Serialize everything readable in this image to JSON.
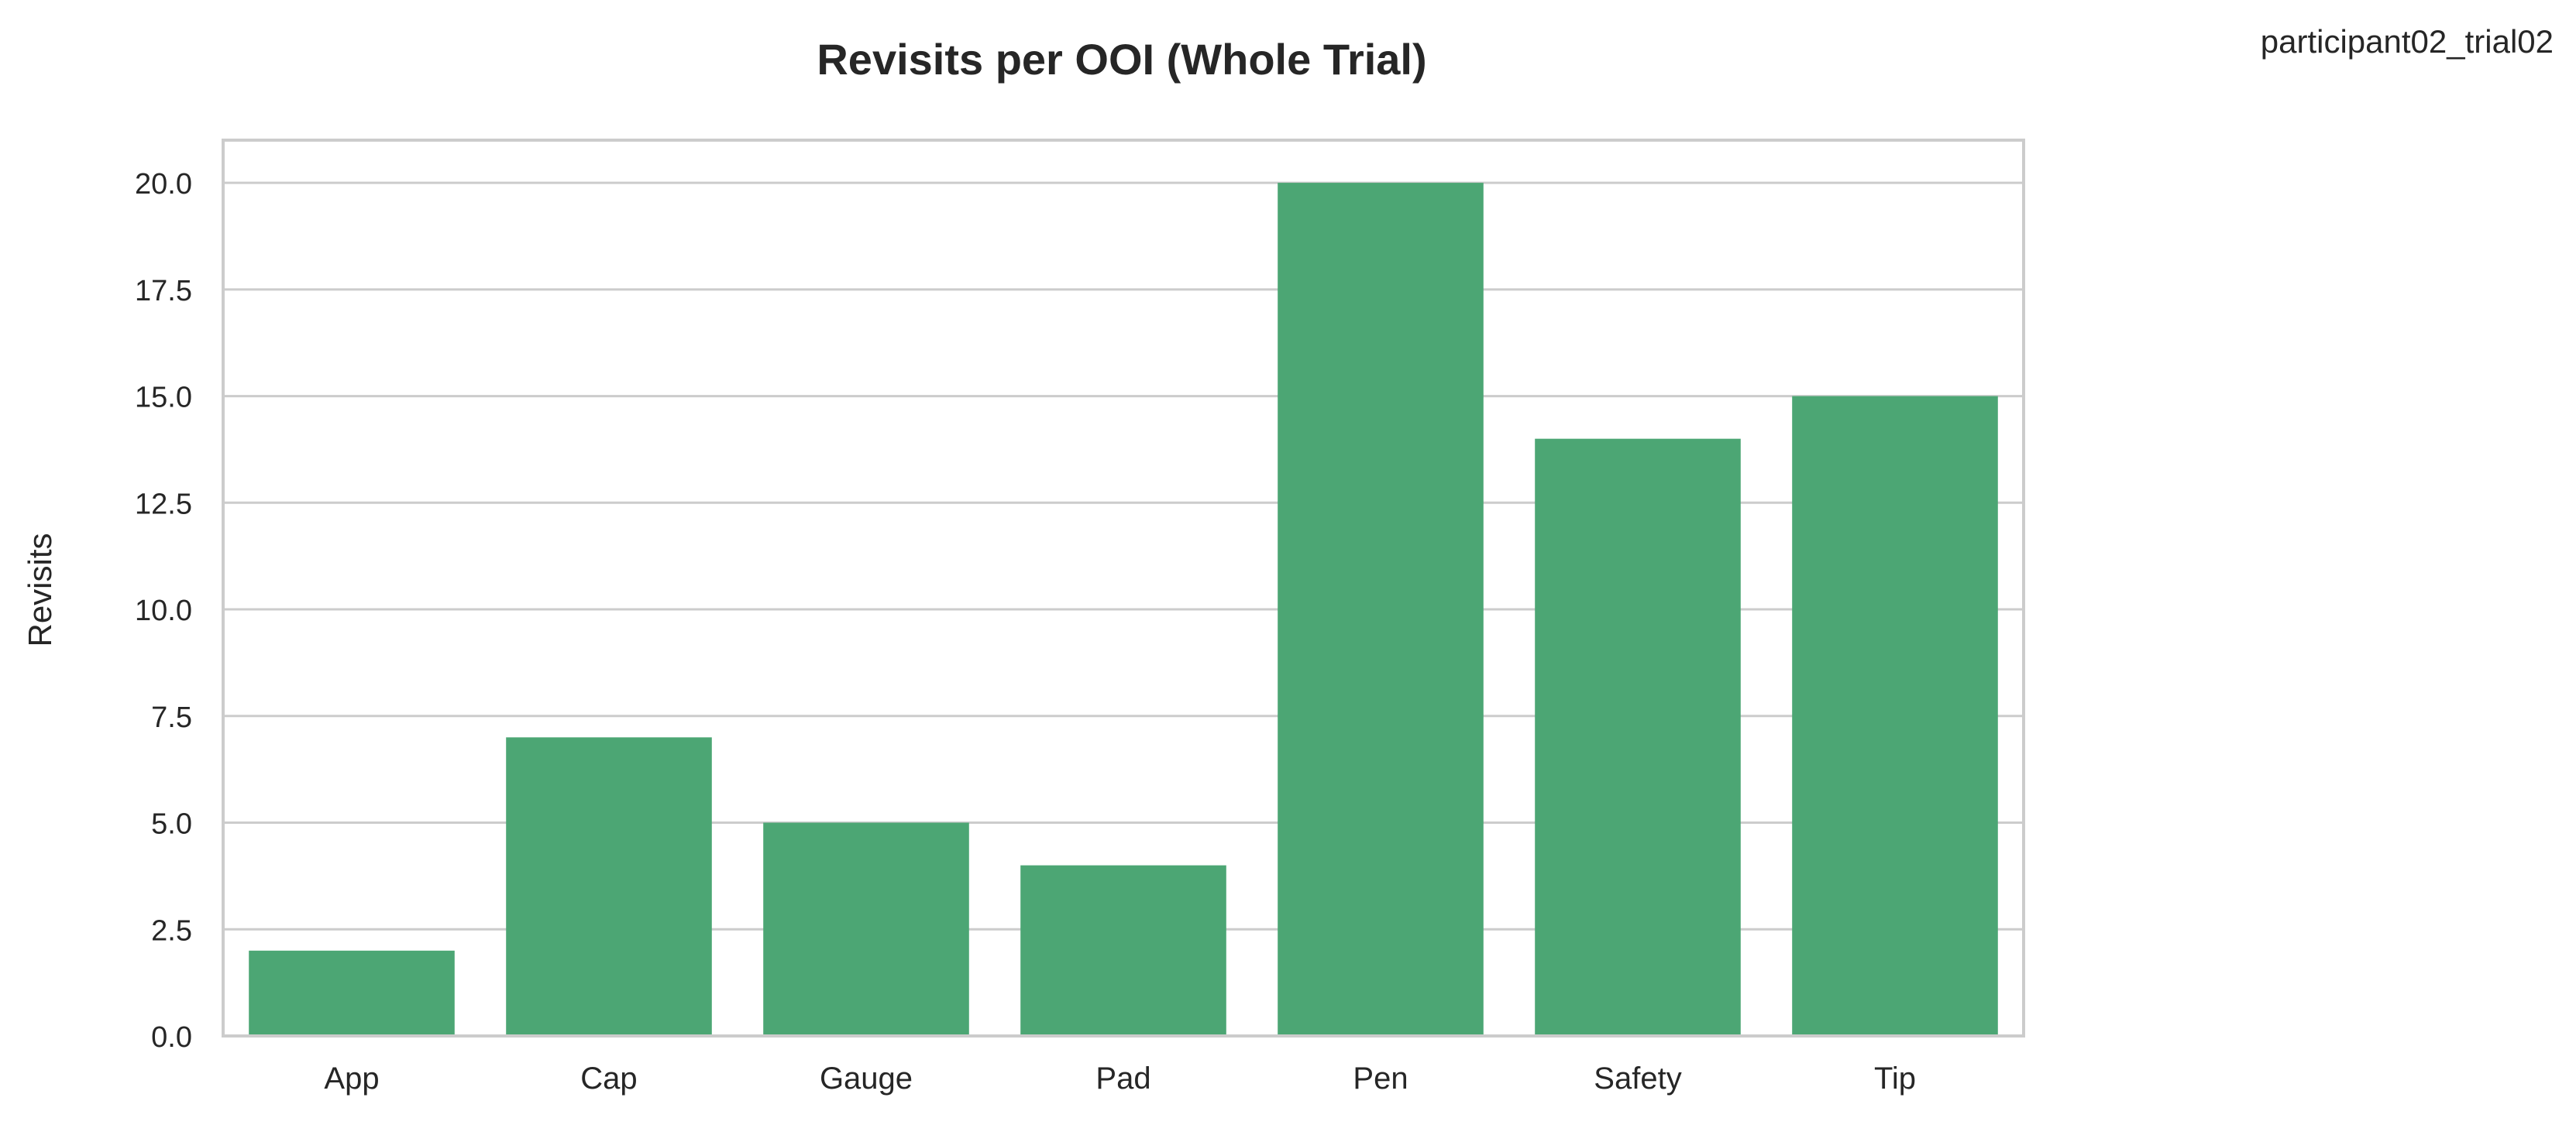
{
  "header": {
    "run_label": "participant02_trial02"
  },
  "chart_data": {
    "type": "bar",
    "title": "Revisits per OOI (Whole Trial)",
    "xlabel": "",
    "ylabel": "Revisits",
    "categories": [
      "App",
      "Cap",
      "Gauge",
      "Pad",
      "Pen",
      "Safety",
      "Tip"
    ],
    "values": [
      2,
      7,
      5,
      4,
      20,
      14,
      15
    ],
    "ylim": [
      0,
      21
    ],
    "yticks": [
      0,
      2.5,
      5,
      7.5,
      10,
      12.5,
      15,
      17.5,
      20
    ],
    "ytick_labels": [
      "0.0",
      "2.5",
      "5.0",
      "7.5",
      "10.0",
      "12.5",
      "15.0",
      "17.5",
      "20.0"
    ],
    "grid": "horizontal",
    "legend": "none",
    "colors": {
      "bar": "#4ca674",
      "grid": "#cccccc",
      "frame": "#cccccc",
      "text": "#262626"
    }
  }
}
